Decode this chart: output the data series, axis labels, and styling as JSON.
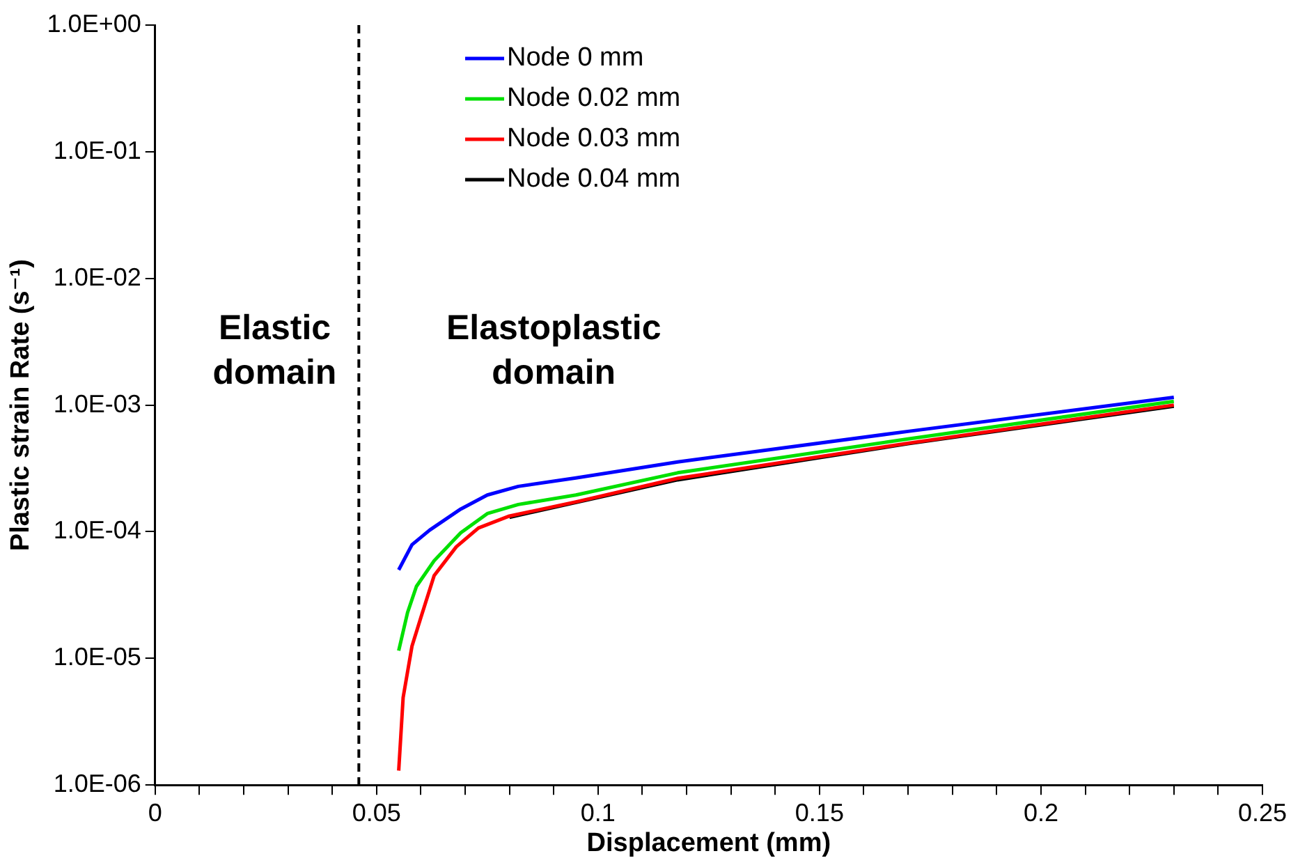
{
  "chart_data": {
    "type": "line",
    "xlabel": "Displacement (mm)",
    "ylabel": "Plastic strain Rate (s⁻¹)",
    "log": "y",
    "grid": false,
    "legend": "top",
    "marker": "none",
    "line_style": "solid",
    "xlim": [
      0,
      0.25
    ],
    "xticks": [
      0,
      {
        "value": 0.01,
        "label": null
      },
      {
        "value": 0.02,
        "label": null
      },
      {
        "value": 0.03,
        "label": null
      },
      {
        "value": 0.04,
        "label": null
      },
      {
        "value": 0.05,
        "label": "0.05"
      },
      {
        "value": 0.06,
        "label": null
      },
      {
        "value": 0.07,
        "label": null
      },
      {
        "value": 0.08,
        "label": null
      },
      {
        "value": 0.09,
        "label": null
      },
      0.1,
      {
        "value": 0.11,
        "label": null
      },
      {
        "value": 0.12,
        "label": null
      },
      {
        "value": 0.13,
        "label": null
      },
      {
        "value": 0.14,
        "label": null
      },
      0.15,
      {
        "value": 0.16,
        "label": null
      },
      {
        "value": 0.17,
        "label": null
      },
      {
        "value": 0.18,
        "label": null
      },
      {
        "value": 0.19,
        "label": null
      },
      0.2,
      {
        "value": 0.21,
        "label": null
      },
      {
        "value": 0.22,
        "label": null
      },
      {
        "value": 0.23,
        "label": null
      },
      {
        "value": 0.24,
        "label": null
      },
      0.25
    ],
    "ylim": [
      1e-06,
      1
    ],
    "yticks": [
      {
        "value": 1e-06,
        "label": "1.0E-06"
      },
      {
        "value": 1e-05,
        "label": "1.0E-05"
      },
      {
        "value": 0.0001,
        "label": "1.0E-04"
      },
      {
        "value": 0.001,
        "label": "1.0E-03"
      },
      {
        "value": 0.01,
        "label": "1.0E-02"
      },
      {
        "value": 0.1,
        "label": "1.0E-01"
      },
      {
        "value": 1,
        "label": "1.0E+00"
      }
    ],
    "series": [
      {
        "name": "Node 0 mm",
        "color": "#0000ff",
        "x": [
          0.055,
          0.058,
          0.062,
          0.069,
          0.075,
          0.082,
          0.095,
          0.118,
          0.17,
          0.23
        ],
        "values": [
          5e-05,
          7.9e-05,
          0.000103,
          0.000151,
          0.000195,
          0.000228,
          0.000266,
          0.000356,
          0.00062,
          0.00115
        ]
      },
      {
        "name": "Node 0.02 mm",
        "color": "#00e000",
        "x": [
          0.055,
          0.057,
          0.059,
          0.063,
          0.069,
          0.075,
          0.082,
          0.095,
          0.118,
          0.17,
          0.23
        ],
        "values": [
          1.15e-05,
          2.3e-05,
          3.7e-05,
          5.9e-05,
          9.8e-05,
          0.000139,
          0.000164,
          0.000195,
          0.000292,
          0.00054,
          0.00107
        ]
      },
      {
        "name": "Node 0.03 mm",
        "color": "#ff0000",
        "x": [
          0.055,
          0.056,
          0.058,
          0.06,
          0.063,
          0.068,
          0.073,
          0.08,
          0.095,
          0.118,
          0.17,
          0.23
        ],
        "values": [
          1.3e-06,
          4.9e-06,
          1.25e-05,
          2.1e-05,
          4.5e-05,
          7.6e-05,
          0.000107,
          0.000133,
          0.000172,
          0.000264,
          0.0005,
          0.001
        ]
      },
      {
        "name": "Node 0.04 mm",
        "color": "#000000",
        "x": [
          0.08,
          0.118,
          0.17,
          0.23
        ],
        "values": [
          0.00013,
          0.000257,
          0.000495,
          0.00098
        ]
      }
    ],
    "ref_lines": [
      {
        "axis": "x",
        "value": 0.046,
        "color": "#000000",
        "line_style": "dashed"
      }
    ],
    "annotations": [
      "Elastic\ndomain",
      "Elastoplastic\ndomain"
    ]
  }
}
